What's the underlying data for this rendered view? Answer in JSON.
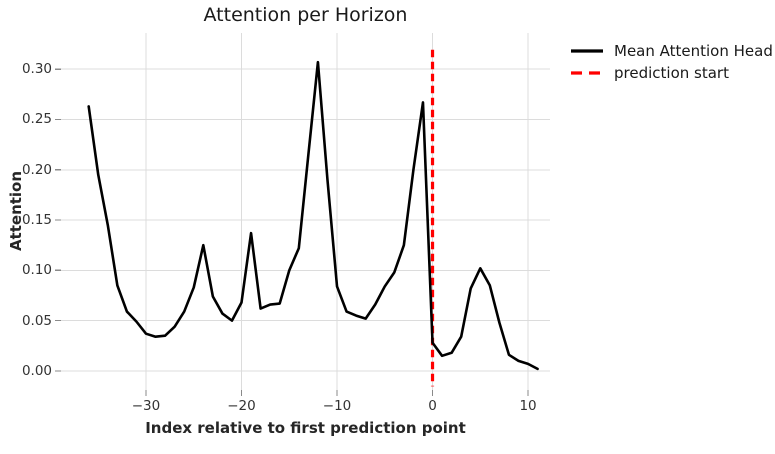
{
  "figure": {
    "background": "#ffffff"
  },
  "chart_data": {
    "type": "line",
    "title": "Attention per Horizon",
    "xlabel": "Index relative to first prediction point",
    "ylabel": "Attention",
    "grid": true,
    "legend_position": "upper right outside plot",
    "xlim": [
      -38.9,
      12.3
    ],
    "ylim": [
      -0.019,
      0.336
    ],
    "xticks": [
      -30,
      -20,
      -10,
      0,
      10
    ],
    "xtick_labels": [
      "−30",
      "−20",
      "−10",
      "0",
      "10"
    ],
    "yticks": [
      0.0,
      0.05,
      0.1,
      0.15,
      0.2,
      0.25,
      0.3
    ],
    "ytick_labels": [
      "0.00",
      "0.05",
      "0.10",
      "0.15",
      "0.20",
      "0.25",
      "0.30"
    ],
    "x": [
      -36,
      -35,
      -34,
      -33,
      -32,
      -31,
      -30,
      -29,
      -28,
      -27,
      -26,
      -25,
      -24,
      -23,
      -22,
      -21,
      -20,
      -19,
      -18,
      -17,
      -16,
      -15,
      -14,
      -13,
      -12,
      -11,
      -10,
      -9,
      -8,
      -7,
      -6,
      -5,
      -4,
      -3,
      -2,
      -1,
      0,
      1,
      2,
      3,
      4,
      5,
      6,
      7,
      8,
      9,
      10,
      11
    ],
    "series": [
      {
        "name": "Mean Attention Head",
        "color": "#000000",
        "line_width": 2.6,
        "values": [
          0.263,
          0.195,
          0.145,
          0.085,
          0.059,
          0.049,
          0.037,
          0.034,
          0.035,
          0.044,
          0.059,
          0.083,
          0.125,
          0.074,
          0.057,
          0.05,
          0.068,
          0.137,
          0.062,
          0.066,
          0.067,
          0.1,
          0.122,
          0.215,
          0.307,
          0.19,
          0.084,
          0.059,
          0.055,
          0.052,
          0.066,
          0.084,
          0.098,
          0.125,
          0.2,
          0.267,
          0.028,
          0.015,
          0.018,
          0.034,
          0.082,
          0.102,
          0.085,
          0.048,
          0.016,
          0.01,
          0.007,
          0.002
        ]
      }
    ],
    "prediction_line": {
      "label": "prediction start",
      "x": 0,
      "color": "#ff0000",
      "style": "dashed",
      "line_width": 3.2
    },
    "legend": [
      {
        "label": "Mean Attention Head",
        "color": "#000000",
        "dash": "solid"
      },
      {
        "label": "prediction start",
        "color": "#ff0000",
        "dash": "dashed"
      }
    ],
    "grid_color": "#dcdcdc",
    "tick_color": "#8a8a8a"
  }
}
